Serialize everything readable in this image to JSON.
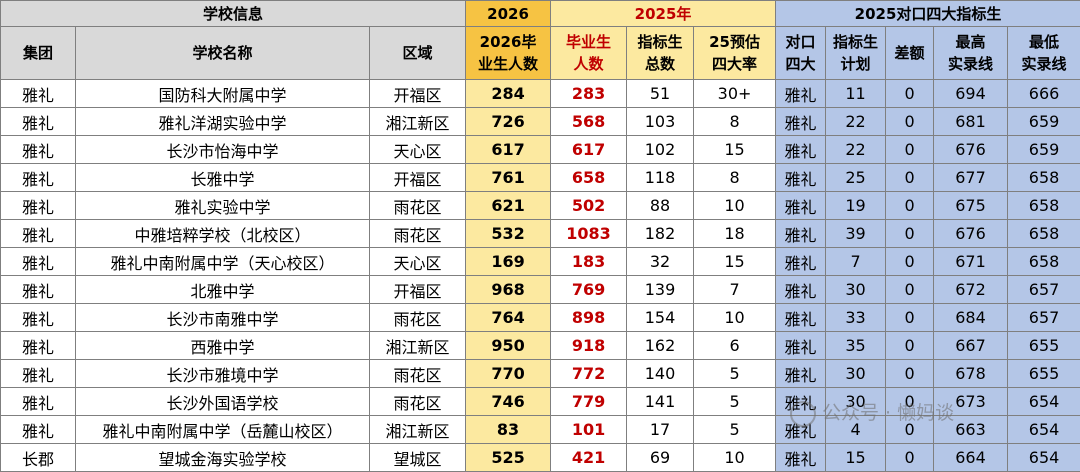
{
  "header": {
    "group_school": "学校信息",
    "group_2026": "2026",
    "group_2025": "2025年",
    "group_quota": "2025对口四大指标生",
    "cols": [
      "集团",
      "学校名称",
      "区域",
      "2026毕\n业生人数",
      "毕业生\n人数",
      "指标生\n总数",
      "25预估\n四大率",
      "对口\n四大",
      "指标生\n计划",
      "差额",
      "最高\n实录线",
      "最低\n实录线"
    ]
  },
  "rows": [
    [
      "雅礼",
      "国防科大附属中学",
      "开福区",
      "284",
      "283",
      "51",
      "30+",
      "雅礼",
      "11",
      "0",
      "694",
      "666"
    ],
    [
      "雅礼",
      "雅礼洋湖实验中学",
      "湘江新区",
      "726",
      "568",
      "103",
      "8",
      "雅礼",
      "22",
      "0",
      "681",
      "659"
    ],
    [
      "雅礼",
      "长沙市怡海中学",
      "天心区",
      "617",
      "617",
      "102",
      "15",
      "雅礼",
      "22",
      "0",
      "676",
      "659"
    ],
    [
      "雅礼",
      "长雅中学",
      "开福区",
      "761",
      "658",
      "118",
      "8",
      "雅礼",
      "25",
      "0",
      "677",
      "658"
    ],
    [
      "雅礼",
      "雅礼实验中学",
      "雨花区",
      "621",
      "502",
      "88",
      "10",
      "雅礼",
      "19",
      "0",
      "675",
      "658"
    ],
    [
      "雅礼",
      "中雅培粹学校（北校区）",
      "雨花区",
      "532",
      "1083",
      "182",
      "18",
      "雅礼",
      "39",
      "0",
      "676",
      "658"
    ],
    [
      "雅礼",
      "雅礼中南附属中学（天心校区）",
      "天心区",
      "169",
      "183",
      "32",
      "15",
      "雅礼",
      "7",
      "0",
      "671",
      "658"
    ],
    [
      "雅礼",
      "北雅中学",
      "开福区",
      "968",
      "769",
      "139",
      "7",
      "雅礼",
      "30",
      "0",
      "672",
      "657"
    ],
    [
      "雅礼",
      "长沙市南雅中学",
      "雨花区",
      "764",
      "898",
      "154",
      "10",
      "雅礼",
      "33",
      "0",
      "684",
      "657"
    ],
    [
      "雅礼",
      "西雅中学",
      "湘江新区",
      "950",
      "918",
      "162",
      "6",
      "雅礼",
      "35",
      "0",
      "667",
      "655"
    ],
    [
      "雅礼",
      "长沙市雅境中学",
      "雨花区",
      "770",
      "772",
      "140",
      "5",
      "雅礼",
      "30",
      "0",
      "678",
      "655"
    ],
    [
      "雅礼",
      "长沙外国语学校",
      "雨花区",
      "746",
      "779",
      "141",
      "5",
      "雅礼",
      "30",
      "0",
      "673",
      "654"
    ],
    [
      "雅礼",
      "雅礼中南附属中学（岳麓山校区）",
      "湘江新区",
      "83",
      "101",
      "17",
      "5",
      "雅礼",
      "4",
      "0",
      "663",
      "654"
    ],
    [
      "长郡",
      "望城金海实验学校",
      "望城区",
      "525",
      "421",
      "69",
      "10",
      "雅礼",
      "15",
      "0",
      "664",
      "654"
    ]
  ],
  "watermark": "公众号 · 懒妈谈"
}
